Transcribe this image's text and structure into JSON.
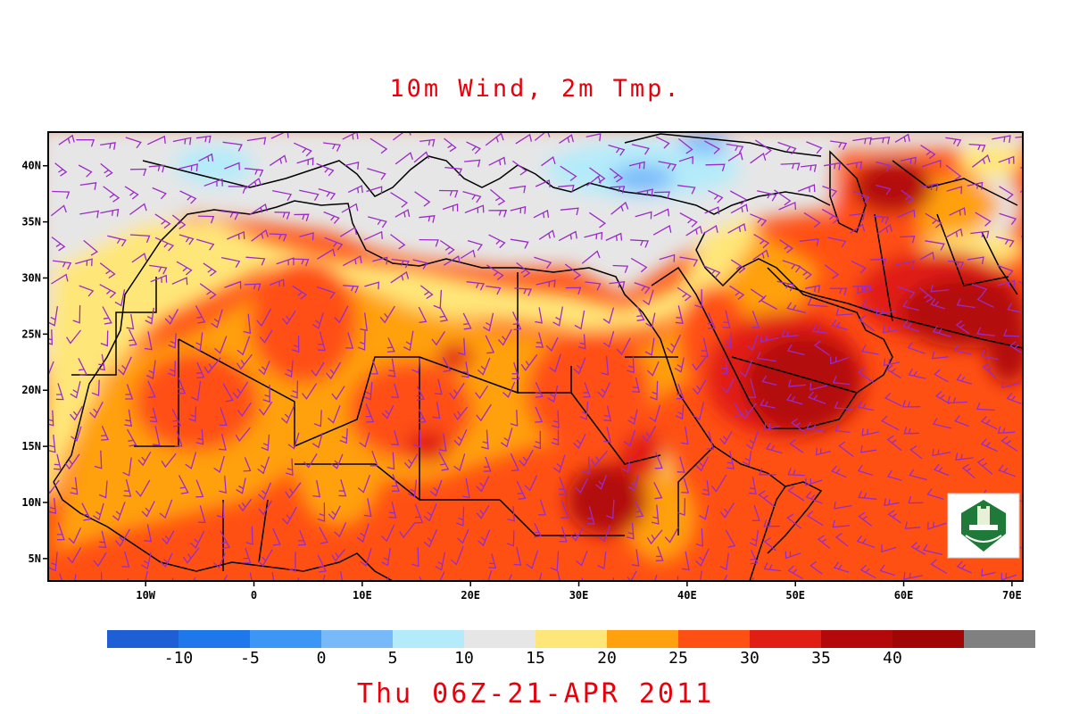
{
  "map": {
    "title": "10m Wind, 2m Tmp.",
    "valid_time": "Thu 06Z-21-APR 2011",
    "lon_ticks": [
      "10W",
      "0",
      "10E",
      "20E",
      "30E",
      "40E",
      "50E",
      "60E",
      "70E"
    ],
    "lat_ticks": [
      "40N",
      "35N",
      "30N",
      "25N",
      "20N",
      "15N",
      "10N",
      "5N"
    ],
    "lon_values": [
      -10,
      0,
      10,
      20,
      30,
      40,
      50,
      60,
      70
    ],
    "lat_values": [
      40,
      35,
      30,
      25,
      20,
      15,
      10,
      5
    ],
    "lon_range": [
      -19,
      71
    ],
    "lat_range": [
      3,
      43
    ],
    "wind_color": "#9b2bc8",
    "logo": "university-seal-logo"
  },
  "colorbar": {
    "labels": [
      "-10",
      "-5",
      "0",
      "5",
      "10",
      "15",
      "20",
      "25",
      "30",
      "35",
      "40"
    ],
    "colors": [
      "#1e5fd6",
      "#1e78eb",
      "#3c96f5",
      "#78b9fa",
      "#b4ebfa",
      "#e6e6e6",
      "#ffe678",
      "#ffa00f",
      "#ff5014",
      "#e11e14",
      "#b4090b",
      "#a00606",
      "#808080"
    ]
  }
}
